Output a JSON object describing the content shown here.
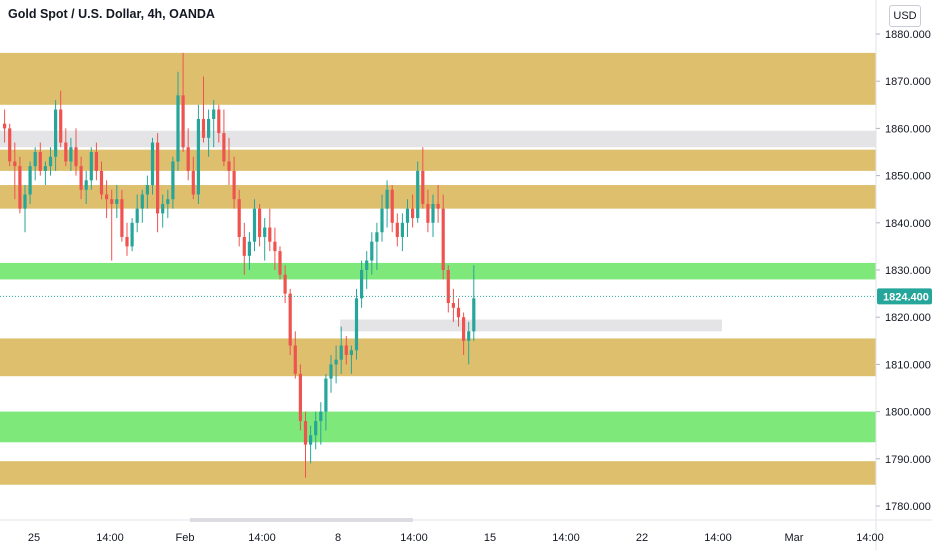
{
  "header": {
    "title": "Gold Spot / U.S. Dollar, 4h, OANDA",
    "currency": "USD"
  },
  "colors": {
    "up": "#26a69a",
    "down": "#ef5350",
    "gold_zone": "#ddbf6e",
    "green_zone": "#7ee87a",
    "gray_zone": "#e4e4e6"
  },
  "chart_data": {
    "type": "candlestick",
    "title": "Gold Spot / U.S. Dollar, 4h, OANDA",
    "ylim": [
      1776,
      1884
    ],
    "y_ticks": [
      "1780.000",
      "1790.000",
      "1800.000",
      "1810.000",
      "1820.000",
      "1830.000",
      "1840.000",
      "1850.000",
      "1860.000",
      "1870.000",
      "1880.000"
    ],
    "x_ticks": [
      "25",
      "14:00",
      "Feb",
      "14:00",
      "8",
      "14:00",
      "15",
      "14:00",
      "22",
      "14:00",
      "Mar",
      "14:00"
    ],
    "last_price": 1824.4,
    "last_price_label": "1824.400",
    "zones": [
      {
        "color": "gold",
        "low": 1865.0,
        "high": 1876.0,
        "extent": "full"
      },
      {
        "color": "gray",
        "low": 1856.0,
        "high": 1859.5,
        "extent": "full"
      },
      {
        "color": "gold",
        "low": 1851.0,
        "high": 1855.5,
        "extent": "full"
      },
      {
        "color": "gold",
        "low": 1843.0,
        "high": 1848.0,
        "extent": "full"
      },
      {
        "color": "green",
        "low": 1828.0,
        "high": 1831.5,
        "extent": "full"
      },
      {
        "color": "gray",
        "low": 1817.0,
        "high": 1819.5,
        "extent": "partial"
      },
      {
        "color": "gold",
        "low": 1807.5,
        "high": 1815.5,
        "extent": "full"
      },
      {
        "color": "green",
        "low": 1793.5,
        "high": 1800.0,
        "extent": "full"
      },
      {
        "color": "gold",
        "low": 1784.5,
        "high": 1789.5,
        "extent": "full"
      }
    ],
    "candles": [
      [
        1861,
        1864,
        1857,
        1860
      ],
      [
        1860,
        1861,
        1852,
        1853
      ],
      [
        1853,
        1857,
        1845,
        1852
      ],
      [
        1852,
        1854,
        1842,
        1843
      ],
      [
        1843,
        1848,
        1838,
        1846
      ],
      [
        1846,
        1853,
        1844,
        1852
      ],
      [
        1852,
        1856,
        1849,
        1855
      ],
      [
        1855,
        1857,
        1850,
        1851
      ],
      [
        1851,
        1853,
        1848,
        1852
      ],
      [
        1852,
        1856,
        1850,
        1854
      ],
      [
        1854,
        1866,
        1851,
        1864
      ],
      [
        1864,
        1868,
        1856,
        1857
      ],
      [
        1857,
        1860,
        1852,
        1853
      ],
      [
        1853,
        1858,
        1851,
        1856
      ],
      [
        1856,
        1860,
        1850,
        1852
      ],
      [
        1852,
        1854,
        1845,
        1847
      ],
      [
        1847,
        1851,
        1844,
        1849
      ],
      [
        1849,
        1856,
        1847,
        1855
      ],
      [
        1855,
        1857,
        1849,
        1851
      ],
      [
        1851,
        1853,
        1845,
        1846
      ],
      [
        1846,
        1849,
        1841,
        1845
      ],
      [
        1845,
        1847,
        1832,
        1844
      ],
      [
        1844,
        1848,
        1841,
        1845
      ],
      [
        1845,
        1847,
        1836,
        1837
      ],
      [
        1837,
        1840,
        1833,
        1835
      ],
      [
        1835,
        1841,
        1834,
        1840
      ],
      [
        1840,
        1846,
        1838,
        1843
      ],
      [
        1843,
        1847,
        1840,
        1846
      ],
      [
        1846,
        1850,
        1843,
        1848
      ],
      [
        1848,
        1858,
        1846,
        1857
      ],
      [
        1857,
        1859,
        1838,
        1842
      ],
      [
        1842,
        1846,
        1839,
        1844
      ],
      [
        1844,
        1847,
        1841,
        1845
      ],
      [
        1845,
        1854,
        1843,
        1853
      ],
      [
        1853,
        1872,
        1851,
        1867
      ],
      [
        1867,
        1876,
        1855,
        1856
      ],
      [
        1856,
        1860,
        1849,
        1851
      ],
      [
        1851,
        1854,
        1845,
        1846
      ],
      [
        1846,
        1865,
        1844,
        1862
      ],
      [
        1862,
        1871,
        1857,
        1858
      ],
      [
        1858,
        1864,
        1854,
        1862
      ],
      [
        1862,
        1866,
        1856,
        1864
      ],
      [
        1864,
        1865,
        1857,
        1859
      ],
      [
        1859,
        1864,
        1852,
        1853
      ],
      [
        1853,
        1858,
        1848,
        1851
      ],
      [
        1851,
        1854,
        1843,
        1845
      ],
      [
        1845,
        1847,
        1835,
        1837
      ],
      [
        1837,
        1840,
        1829,
        1833
      ],
      [
        1833,
        1838,
        1830,
        1836
      ],
      [
        1836,
        1845,
        1834,
        1843
      ],
      [
        1843,
        1844,
        1835,
        1837
      ],
      [
        1837,
        1841,
        1832,
        1839
      ],
      [
        1839,
        1843,
        1834,
        1836
      ],
      [
        1836,
        1839,
        1830,
        1834
      ],
      [
        1834,
        1835,
        1828,
        1829
      ],
      [
        1829,
        1831,
        1823,
        1825
      ],
      [
        1825,
        1826,
        1812,
        1814
      ],
      [
        1814,
        1817,
        1807,
        1808
      ],
      [
        1808,
        1810,
        1796,
        1798
      ],
      [
        1798,
        1800,
        1786,
        1793
      ],
      [
        1793,
        1797,
        1789,
        1795
      ],
      [
        1795,
        1800,
        1792,
        1798
      ],
      [
        1798,
        1802,
        1793,
        1800
      ],
      [
        1800,
        1808,
        1796,
        1807
      ],
      [
        1807,
        1812,
        1804,
        1810
      ],
      [
        1810,
        1814,
        1806,
        1811
      ],
      [
        1811,
        1818,
        1808,
        1814
      ],
      [
        1814,
        1816,
        1810,
        1812
      ],
      [
        1812,
        1814,
        1808,
        1813
      ],
      [
        1813,
        1826,
        1811,
        1824
      ],
      [
        1824,
        1832,
        1822,
        1830
      ],
      [
        1830,
        1834,
        1826,
        1832
      ],
      [
        1832,
        1838,
        1829,
        1836
      ],
      [
        1836,
        1840,
        1830,
        1838
      ],
      [
        1838,
        1846,
        1836,
        1843
      ],
      [
        1843,
        1849,
        1839,
        1847
      ],
      [
        1847,
        1848,
        1838,
        1840
      ],
      [
        1840,
        1842,
        1835,
        1837
      ],
      [
        1837,
        1842,
        1834,
        1840
      ],
      [
        1840,
        1845,
        1837,
        1843
      ],
      [
        1843,
        1846,
        1839,
        1841
      ],
      [
        1841,
        1853,
        1840,
        1851
      ],
      [
        1851,
        1856,
        1843,
        1844
      ],
      [
        1844,
        1847,
        1838,
        1840
      ],
      [
        1840,
        1846,
        1837,
        1844
      ],
      [
        1844,
        1848,
        1840,
        1843
      ],
      [
        1843,
        1846,
        1828,
        1830
      ],
      [
        1830,
        1831,
        1821,
        1823
      ],
      [
        1823,
        1826,
        1819,
        1822
      ],
      [
        1822,
        1824,
        1818,
        1820
      ],
      [
        1820,
        1821,
        1812,
        1815
      ],
      [
        1815,
        1819,
        1810,
        1817
      ],
      [
        1817,
        1831,
        1815,
        1824
      ]
    ]
  }
}
